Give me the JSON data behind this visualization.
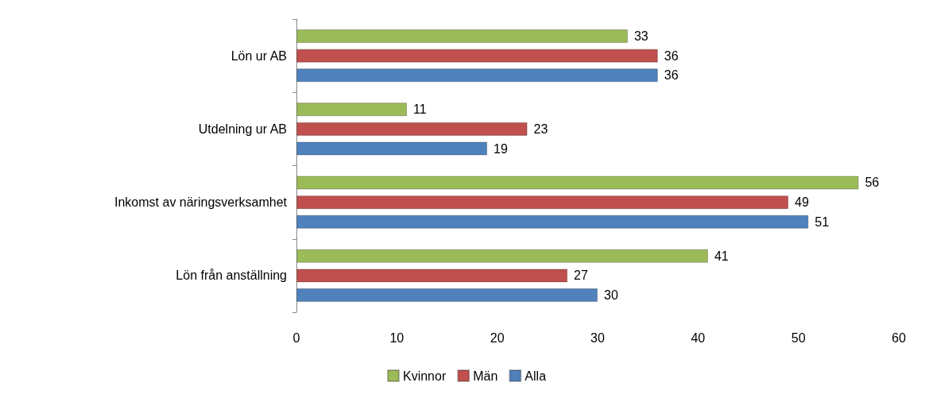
{
  "chart_data": {
    "type": "bar",
    "orientation": "horizontal",
    "categories": [
      "Lön ur AB",
      "Utdelning ur AB",
      "Inkomst av näringsverksamhet",
      "Lön från anställning"
    ],
    "series": [
      {
        "name": "Kvinnor",
        "color": "#9bbb59",
        "values": [
          33,
          11,
          56,
          41
        ]
      },
      {
        "name": "Män",
        "color": "#c0504d",
        "values": [
          36,
          23,
          49,
          27
        ]
      },
      {
        "name": "Alla",
        "color": "#4f81bd",
        "values": [
          36,
          19,
          51,
          30
        ]
      }
    ],
    "xlim": [
      0,
      60
    ],
    "xticks": [
      0,
      10,
      20,
      30,
      40,
      50,
      60
    ],
    "grid": false,
    "legend": "bottom",
    "data_labels": true
  }
}
